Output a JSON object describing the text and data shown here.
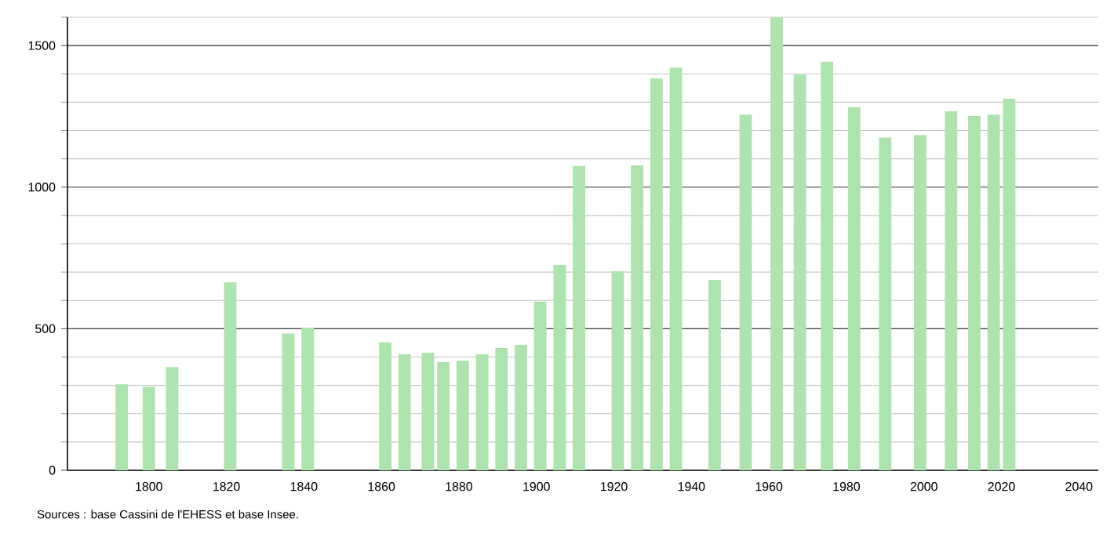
{
  "chart_data": {
    "type": "bar",
    "color": "#ade3ad",
    "x": [
      1793,
      1800,
      1806,
      1821,
      1836,
      1841,
      1861,
      1866,
      1872,
      1876,
      1881,
      1886,
      1891,
      1896,
      1901,
      1906,
      1911,
      1921,
      1926,
      1931,
      1936,
      1946,
      1954,
      1962,
      1968,
      1975,
      1982,
      1990,
      1999,
      2007,
      2013,
      2018,
      2022
    ],
    "values": [
      304,
      295,
      365,
      664,
      483,
      504,
      452,
      410,
      415,
      382,
      387,
      410,
      432,
      443,
      596,
      725,
      1075,
      703,
      1077,
      1384,
      1422,
      673,
      1256,
      1600,
      1397,
      1443,
      1282,
      1175,
      1184,
      1268,
      1251,
      1256,
      1312
    ],
    "xlim": [
      1779,
      2045
    ],
    "ylim": [
      0,
      1600
    ],
    "xticks": [
      1800,
      1820,
      1840,
      1860,
      1880,
      1900,
      1920,
      1940,
      1960,
      1980,
      2000,
      2020,
      2040
    ],
    "yticks": [
      0,
      {
        "value": 100,
        "label": null
      },
      {
        "value": 200,
        "label": null
      },
      {
        "value": 300,
        "label": null
      },
      {
        "value": 400,
        "label": null
      },
      500,
      {
        "value": 600,
        "label": null
      },
      {
        "value": 700,
        "label": null
      },
      {
        "value": 800,
        "label": null
      },
      {
        "value": 900,
        "label": null
      },
      1000,
      {
        "value": 1100,
        "label": null
      },
      {
        "value": 1200,
        "label": null
      },
      {
        "value": 1300,
        "label": null
      },
      {
        "value": 1400,
        "label": null
      },
      1500,
      {
        "value": 1600,
        "label": null
      }
    ],
    "grid": "y",
    "annotations": [
      "Sources : base Cassini de l'EHESS et base Insee."
    ]
  }
}
